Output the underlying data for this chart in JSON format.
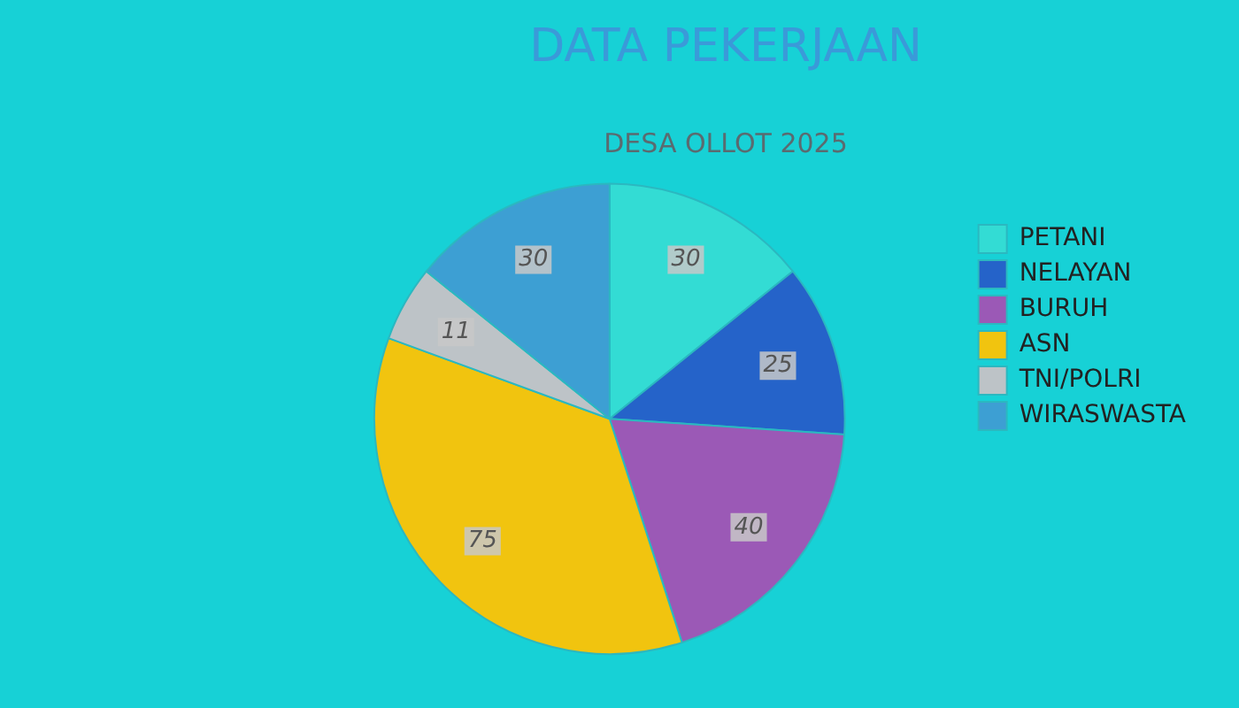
{
  "chart_data": {
    "type": "pie",
    "title": "DATA PEKERJAAN",
    "subtitle": "DESA OLLOT 2025",
    "categories": [
      "PETANI",
      "NELAYAN",
      "BURUH",
      "ASN",
      "TNI/POLRI",
      "WIRASWASTA"
    ],
    "values": [
      30,
      25,
      40,
      75,
      11,
      30
    ],
    "colors": [
      "#33dcd4",
      "#2563c9",
      "#9b59b6",
      "#f1c40f",
      "#bdc3c7",
      "#3d9fd3"
    ],
    "data_labels": true,
    "legend": "right"
  }
}
